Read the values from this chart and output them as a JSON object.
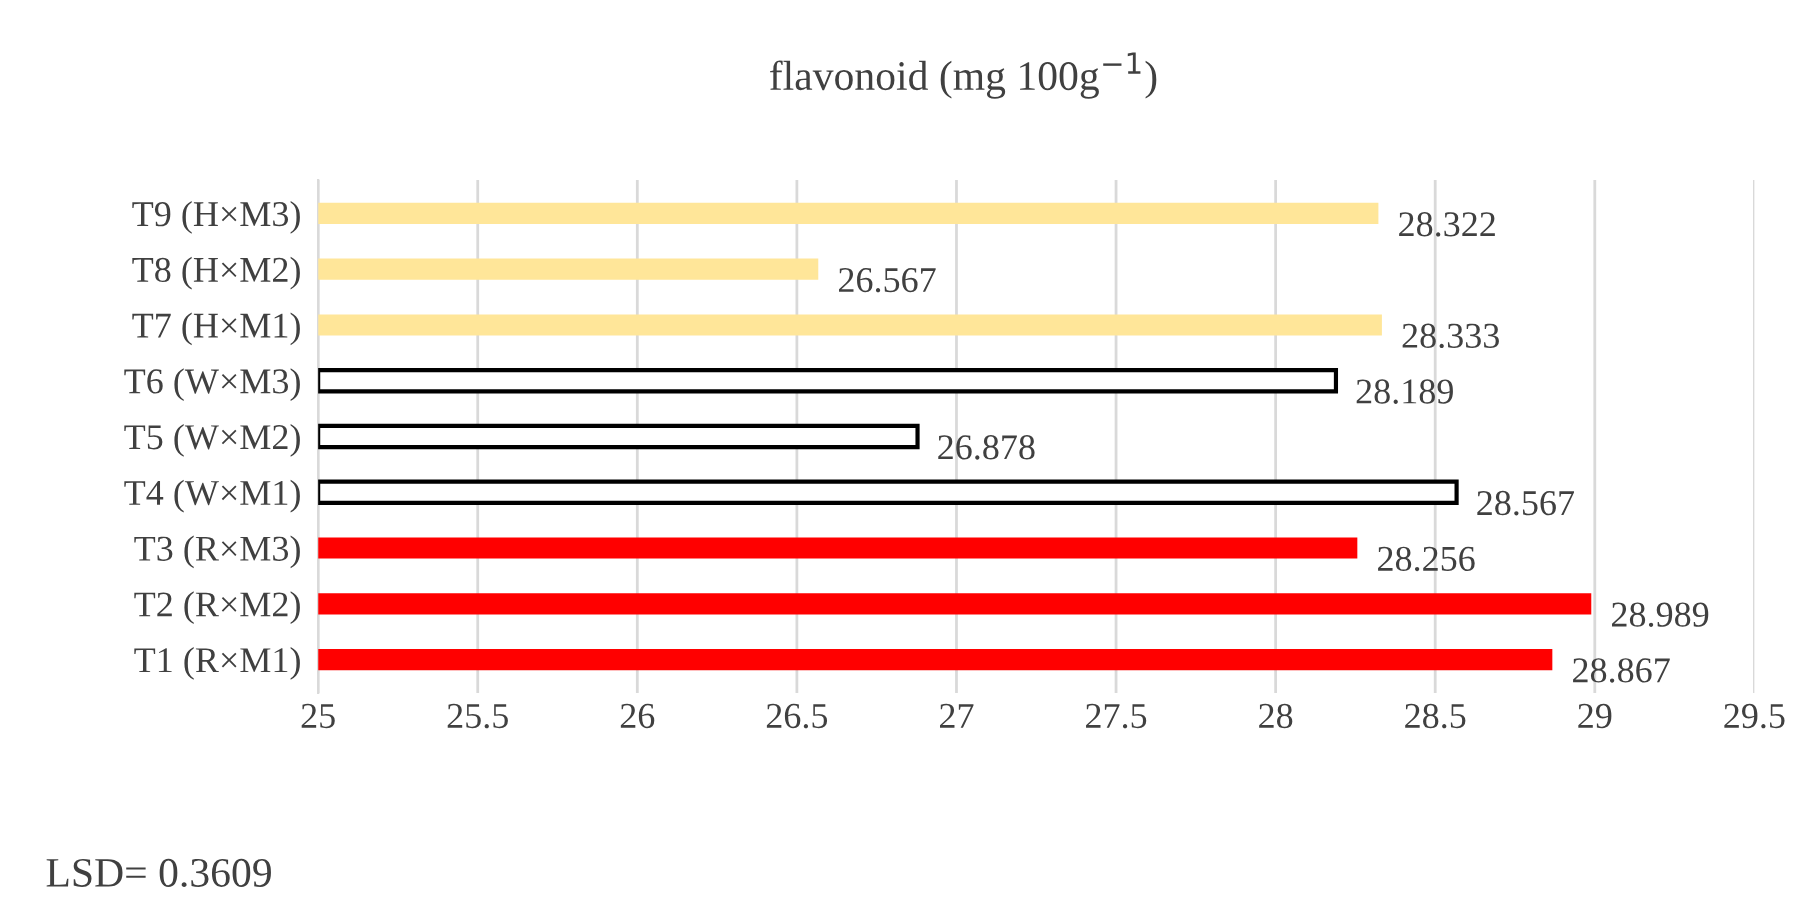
{
  "chart_data": {
    "type": "bar",
    "orientation": "horizontal",
    "title": "flavonoid (mg 100g$^{−1}$)",
    "categories": [
      "T9 (H×M3)",
      "T8 (H×M2)",
      "T7 (H×M1)",
      "T6 (W×M3)",
      "T5 (W×M2)",
      "T4 (W×M1)",
      "T3 (R×M3)",
      "T2 (R×M2)",
      "T1 (R×M1)"
    ],
    "values": [
      28.322,
      26.567,
      28.333,
      28.189,
      26.878,
      28.567,
      28.256,
      28.989,
      28.867
    ],
    "colors": [
      "#ffe699",
      "#ffe699",
      "#ffe699",
      "#ffffff",
      "#ffffff",
      "#ffffff",
      "#ff0000",
      "#ff0000",
      "#ff0000"
    ],
    "xlim": [
      25,
      29.5
    ],
    "xticks": [
      25,
      25.5,
      26,
      26.5,
      27,
      27.5,
      28,
      28.5,
      29,
      29.5
    ],
    "grid": "x",
    "data_labels": true,
    "annotations": [
      "LSD= 0.3609"
    ]
  }
}
